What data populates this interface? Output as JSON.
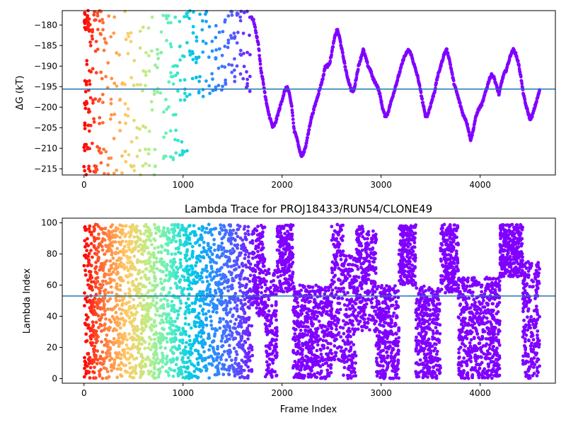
{
  "chart_data": [
    {
      "type": "scatter",
      "title": "",
      "xlabel": "",
      "ylabel": "ΔG (kT)",
      "xlim": [
        -220,
        4760
      ],
      "ylim": [
        -216.5,
        -176.5
      ],
      "xticks": [
        0,
        1000,
        2000,
        3000,
        4000
      ],
      "yticks": [
        -215,
        -210,
        -205,
        -200,
        -195,
        -190,
        -185,
        -180
      ],
      "hline": -195.6,
      "grid": false,
      "colormap": [
        "#ff0000",
        "#ff7f3f",
        "#ffcc66",
        "#bbee88",
        "#55f0c0",
        "#00c8e8",
        "#2a8cff",
        "#5555ff",
        "#8000ff"
      ],
      "series": [
        {
          "segments": [
            {
              "x_range": [
                0,
                60
              ],
              "y": [
                -190,
                -210,
                -180,
                -200,
                -195,
                -215,
                -178,
                -205
              ]
            },
            {
              "x_range": [
                60,
                230
              ],
              "y": [
                -178,
                -185,
                -192,
                -198,
                -204,
                -210,
                -215,
                -182
              ]
            },
            {
              "x_range": [
                230,
                520
              ],
              "y": [
                -177,
                -183,
                -188,
                -194,
                -199,
                -203,
                -207,
                -212,
                -215
              ]
            },
            {
              "x_range": [
                520,
                820
              ],
              "y": [
                -177,
                -182,
                -187,
                -191,
                -196,
                -200,
                -206,
                -211,
                -215
              ]
            },
            {
              "x_range": [
                820,
                1050
              ],
              "y": [
                -178,
                -184,
                -189,
                -193,
                -197,
                -201,
                -207,
                -212
              ]
            },
            {
              "x_range": [
                1050,
                1380
              ],
              "y": [
                -177,
                -180,
                -183,
                -187,
                -190,
                -193,
                -196
              ]
            },
            {
              "x_range": [
                1380,
                1690
              ],
              "y": [
                -178,
                -183,
                -186,
                -189,
                -192,
                -195
              ]
            },
            {
              "x_range": [
                1690,
                4600
              ],
              "y": [
                -178,
                -179,
                -182,
                -185,
                -191,
                -194,
                -198,
                -201,
                -203,
                -205,
                -204,
                -202,
                -200,
                -198,
                -196,
                -195,
                -197,
                -200,
                -206,
                -207,
                -210,
                -212,
                -211,
                -209,
                -206,
                -203,
                -201,
                -199,
                -197,
                -195,
                -193,
                -190,
                -190,
                -189,
                -186,
                -183,
                -181,
                -183,
                -186,
                -189,
                -192,
                -194,
                -196,
                -196,
                -193,
                -190,
                -188,
                -186,
                -188,
                -190,
                -191,
                -193,
                -194,
                -195,
                -197,
                -200,
                -202,
                -202,
                -200,
                -198,
                -196,
                -194,
                -192,
                -190,
                -188,
                -187,
                -186,
                -187,
                -189,
                -191,
                -193,
                -196,
                -199,
                -202,
                -202,
                -200,
                -198,
                -196,
                -193,
                -191,
                -189,
                -187,
                -186,
                -188,
                -191,
                -194,
                -196,
                -198,
                -200,
                -202,
                -203,
                -205,
                -208,
                -206,
                -203,
                -201,
                -200,
                -199,
                -197,
                -195,
                -193,
                -192,
                -193,
                -195,
                -197,
                -194,
                -192,
                -191,
                -189,
                -187,
                -186,
                -187,
                -189,
                -192,
                -196,
                -199,
                -201,
                -203,
                -202,
                -200,
                -198,
                -196
              ]
            }
          ]
        }
      ]
    },
    {
      "type": "scatter",
      "title": "Lambda Trace for PROJ18433/RUN54/CLONE49",
      "xlabel": "Frame Index",
      "ylabel": "Lambda Index",
      "xlim": [
        -220,
        4760
      ],
      "ylim": [
        -3,
        103
      ],
      "xticks": [
        0,
        1000,
        2000,
        3000,
        4000
      ],
      "yticks": [
        0,
        20,
        40,
        60,
        80,
        100
      ],
      "hline": 53,
      "grid": false,
      "colormap": [
        "#ff0000",
        "#ff7f3f",
        "#ffcc66",
        "#bbee88",
        "#55f0c0",
        "#00c8e8",
        "#2a8cff",
        "#5555ff",
        "#8000ff"
      ],
      "blocks": [
        {
          "x_range": [
            0,
            60
          ],
          "y_range": [
            0,
            99
          ]
        },
        {
          "x_range": [
            60,
            1700
          ],
          "y_range": [
            0,
            99
          ]
        },
        {
          "x_range": [
            1700,
            1830
          ],
          "y_range": [
            40,
            99
          ]
        },
        {
          "x_range": [
            1830,
            1950
          ],
          "y_range": [
            0,
            70
          ]
        },
        {
          "x_range": [
            1950,
            2110
          ],
          "y_range": [
            55,
            99
          ]
        },
        {
          "x_range": [
            2110,
            2500
          ],
          "y_range": [
            0,
            60
          ]
        },
        {
          "x_range": [
            2500,
            2620
          ],
          "y_range": [
            10,
            99
          ]
        },
        {
          "x_range": [
            2620,
            2750
          ],
          "y_range": [
            0,
            80
          ]
        },
        {
          "x_range": [
            2750,
            2950
          ],
          "y_range": [
            30,
            99
          ]
        },
        {
          "x_range": [
            2950,
            3180
          ],
          "y_range": [
            0,
            60
          ]
        },
        {
          "x_range": [
            3180,
            3350
          ],
          "y_range": [
            60,
            99
          ]
        },
        {
          "x_range": [
            3350,
            3600
          ],
          "y_range": [
            0,
            60
          ]
        },
        {
          "x_range": [
            3600,
            3780
          ],
          "y_range": [
            55,
            99
          ]
        },
        {
          "x_range": [
            3780,
            4200
          ],
          "y_range": [
            0,
            65
          ]
        },
        {
          "x_range": [
            4200,
            4430
          ],
          "y_range": [
            65,
            99
          ]
        },
        {
          "x_range": [
            4430,
            4600
          ],
          "y_range": [
            0,
            75
          ]
        }
      ]
    }
  ]
}
